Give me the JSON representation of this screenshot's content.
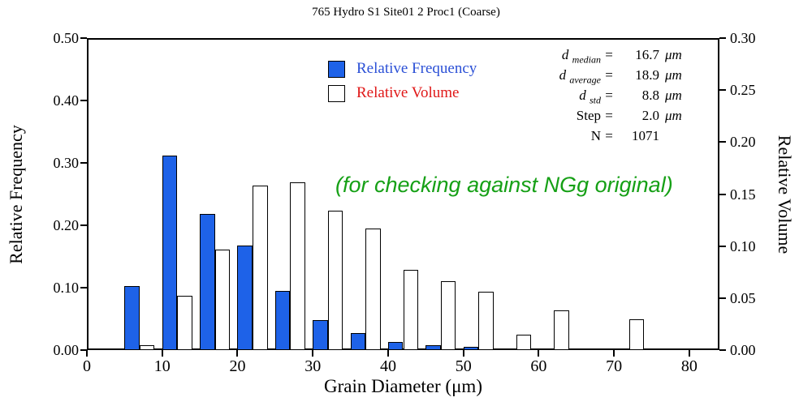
{
  "annotation": {
    "text": "(for checking against NGg original)",
    "color": "#16A016"
  },
  "legend": {
    "items": [
      {
        "label": "Relative Frequency",
        "swatch": "#1E62E8",
        "text_color": "#2B50D6"
      },
      {
        "label": "Relative Volume",
        "swatch": "#FFFFFF",
        "text_color": "#E01818"
      }
    ]
  },
  "stats": {
    "rows": [
      {
        "name": "d",
        "sub": "median",
        "eq": "=",
        "value": "16.7",
        "unit": "μm"
      },
      {
        "name": "d",
        "sub": "average",
        "eq": "=",
        "value": "18.9",
        "unit": "μm"
      },
      {
        "name": "d",
        "sub": "std",
        "eq": "=",
        "value": "8.8",
        "unit": "μm"
      },
      {
        "name": "Step",
        "sub": "",
        "eq": "=",
        "value": "2.0",
        "unit": "μm"
      },
      {
        "name": "N",
        "sub": "",
        "eq": "=",
        "value": "1071",
        "unit": ""
      }
    ]
  },
  "chart_data": {
    "type": "bar",
    "title": "765 Hydro S1 Site01 2 Proc1 (Coarse)",
    "xlabel": "Grain Diameter (μm)",
    "ylabel_left": "Relative Frequency",
    "ylabel_right": "Relative Volume",
    "xlim": [
      0,
      84
    ],
    "ylim_left": [
      0,
      0.5
    ],
    "ylim_right": [
      0,
      0.3
    ],
    "x_ticks": [
      0,
      10,
      20,
      30,
      40,
      50,
      60,
      70,
      80
    ],
    "y_ticks_left": [
      "0.00",
      "0.10",
      "0.20",
      "0.30",
      "0.40",
      "0.50"
    ],
    "y_ticks_right": [
      "0.00",
      "0.05",
      "0.10",
      "0.15",
      "0.20",
      "0.25",
      "0.30"
    ],
    "bar_width_um": 2,
    "grid": false,
    "legend_position": "top-center-inside",
    "series": [
      {
        "name": "Relative Frequency",
        "axis": "left",
        "color": "#1E62E8",
        "x_left_edges": [
          5,
          10,
          15,
          20,
          25,
          30,
          35,
          40,
          45,
          50,
          55,
          60,
          65,
          70,
          75
        ],
        "values": [
          0.103,
          0.312,
          0.218,
          0.168,
          0.095,
          0.048,
          0.027,
          0.013,
          0.008,
          0.005,
          0.002,
          0.002,
          0,
          0.002,
          0
        ]
      },
      {
        "name": "Relative Volume",
        "axis": "right",
        "color": "#FFFFFF",
        "x_left_edges": [
          7,
          12,
          17,
          22,
          27,
          32,
          37,
          42,
          47,
          52,
          57,
          62,
          67,
          72,
          77
        ],
        "values": [
          0.005,
          0.052,
          0.097,
          0.158,
          0.161,
          0.134,
          0.117,
          0.077,
          0.066,
          0.056,
          0.015,
          0.038,
          0,
          0.03,
          0
        ]
      }
    ]
  }
}
